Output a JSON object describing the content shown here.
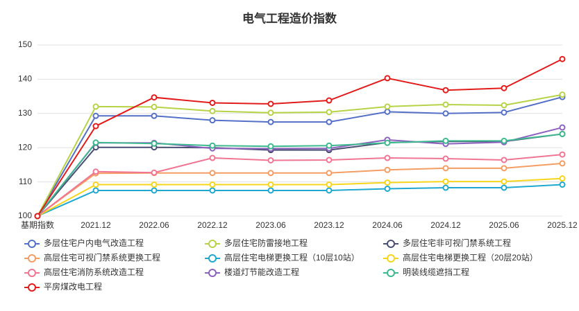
{
  "chart_data": {
    "type": "line",
    "title": "电气工程造价指数",
    "categories": [
      "基期指数",
      "2021.12",
      "2022.06",
      "2022.12",
      "2023.06",
      "2023.12",
      "2024.06",
      "2024.12",
      "2025.06",
      "2025.12"
    ],
    "ylim": [
      100,
      150
    ],
    "yticks": [
      100,
      110,
      120,
      130,
      140,
      150
    ],
    "grid": true,
    "series": [
      {
        "name": "多层住宅户内电气改造工程",
        "color": "#5470c6",
        "values": [
          100,
          129.3,
          129.3,
          128,
          127.5,
          127.5,
          130.5,
          130,
          130.3,
          134.8
        ]
      },
      {
        "name": "多层住宅防雷接地工程",
        "color": "#b6d345",
        "values": [
          100,
          132,
          131.9,
          130.7,
          130.2,
          130.4,
          132,
          132.6,
          132.4,
          135.5
        ]
      },
      {
        "name": "多层住宅非可视门禁系统工程",
        "color": "#4a4f73",
        "values": [
          100,
          120.1,
          120.1,
          120,
          119.3,
          119.3,
          121.5,
          121.8,
          121.8,
          124
        ]
      },
      {
        "name": "高层住宅可视门禁系统更换工程",
        "color": "#f49d62",
        "values": [
          100,
          112.5,
          112.6,
          112.6,
          112.6,
          112.6,
          113.5,
          114,
          114,
          115.4
        ]
      },
      {
        "name": "高层住宅电梯更换工程（10层10站）",
        "color": "#1ea7cf",
        "values": [
          100,
          107.5,
          107.5,
          107.5,
          107.5,
          107.5,
          108,
          108.3,
          108.3,
          109.2
        ]
      },
      {
        "name": "高层住宅电梯更换工程（20层20站）",
        "color": "#f7d51a",
        "values": [
          100,
          109.2,
          109.2,
          109.2,
          109.2,
          109.2,
          109.8,
          110.1,
          110.1,
          111
        ]
      },
      {
        "name": "高层住宅消防系统改造工程",
        "color": "#f07593",
        "values": [
          100,
          113,
          112.7,
          117,
          116.3,
          116.4,
          117,
          116.8,
          116.4,
          118
        ]
      },
      {
        "name": "楼道灯节能改造工程",
        "color": "#8c62bf",
        "values": [
          100,
          121.4,
          121.4,
          119.8,
          119.7,
          119.8,
          122.3,
          121.1,
          121.6,
          125.9
        ]
      },
      {
        "name": "明装线缆遮挡工程",
        "color": "#3cb98f",
        "values": [
          100,
          121.5,
          121.2,
          120.6,
          120.4,
          120.6,
          121.4,
          122,
          122,
          124
        ]
      },
      {
        "name": "平房煤改电工程",
        "color": "#e21b1b",
        "values": [
          100,
          126.3,
          134.7,
          133.1,
          132.8,
          133.8,
          140.3,
          136.8,
          137.4,
          145.9
        ]
      }
    ]
  }
}
